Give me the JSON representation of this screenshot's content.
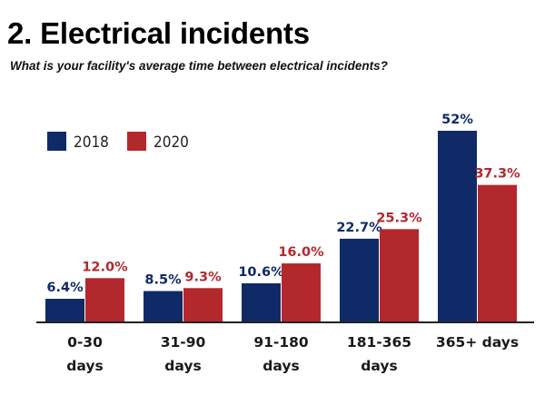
{
  "title": "2. Electrical incidents",
  "subtitle": "What is your facility's average time between electrical incidents?",
  "chart_data": {
    "type": "bar",
    "title": "2. Electrical incidents",
    "subtitle": "What is your facility's average time between electrical incidents?",
    "categories": [
      [
        "0-30",
        "days"
      ],
      [
        "31-90",
        "days"
      ],
      [
        "91-180",
        "days"
      ],
      [
        "181-365",
        "days"
      ],
      [
        "365+ days"
      ]
    ],
    "series": [
      {
        "name": "2018",
        "color": "#0f2a67",
        "values": [
          6.4,
          8.5,
          10.6,
          22.7,
          52
        ],
        "labels": [
          "6.4%",
          "8.5%",
          "10.6%",
          "22.7%",
          "52%"
        ]
      },
      {
        "name": "2020",
        "color": "#b3282d",
        "values": [
          12.0,
          9.3,
          16.0,
          25.3,
          37.3
        ],
        "labels": [
          "12.0%",
          "9.3%",
          "16.0%",
          "25.3%",
          "37.3%"
        ]
      }
    ],
    "ylim": [
      0,
      52
    ],
    "grid": false,
    "legend_position": "top-left"
  }
}
